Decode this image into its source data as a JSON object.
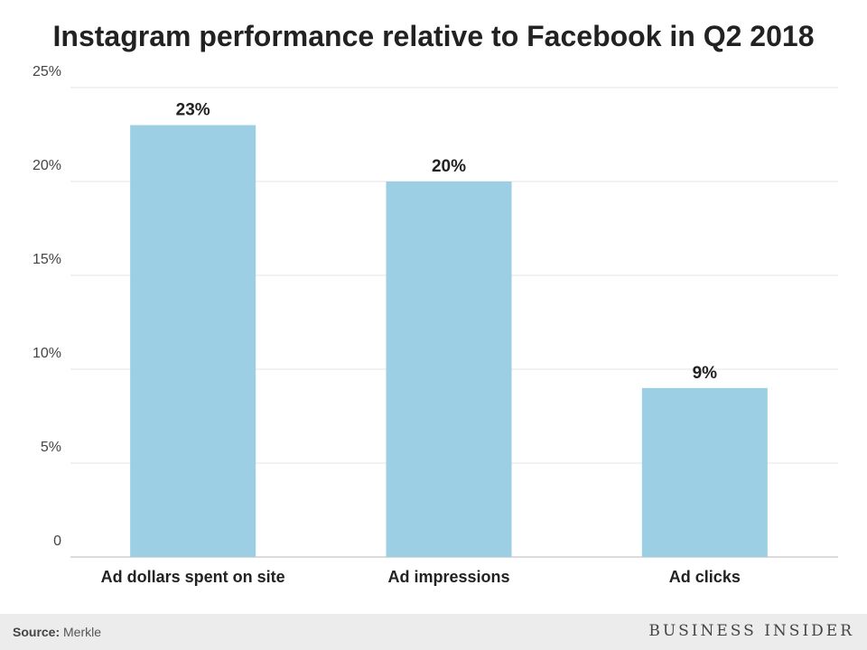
{
  "chart_data": {
    "type": "bar",
    "title": "Instagram performance relative to Facebook in Q2 2018",
    "categories": [
      "Ad dollars spent on site",
      "Ad impressions",
      "Ad clicks"
    ],
    "values": [
      23,
      20,
      9
    ],
    "data_labels": [
      "23%",
      "20%",
      "9%"
    ],
    "yticks": [
      0,
      5,
      10,
      15,
      20,
      25
    ],
    "ytick_labels": [
      "0",
      "5%",
      "10%",
      "15%",
      "20%",
      "25%"
    ],
    "ylim": [
      0,
      25
    ],
    "xlabel": "",
    "ylabel": "",
    "grid": true,
    "bar_color": "#9ccee4"
  },
  "footer": {
    "source_label": "Source:",
    "source_value": "Merkle",
    "brand": "BUSINESS INSIDER"
  }
}
